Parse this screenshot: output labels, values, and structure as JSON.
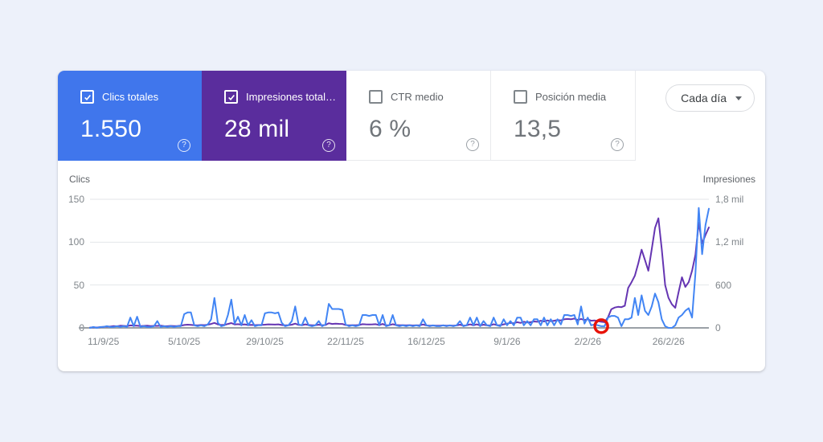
{
  "page": {
    "background": "#edf1fa"
  },
  "metrics": {
    "tiles": [
      {
        "id": "clicks",
        "label": "Clics totales",
        "value": "1.550",
        "checked": true,
        "color": "#4076ec"
      },
      {
        "id": "impressions",
        "label": "Impresiones total…",
        "value": "28 mil",
        "checked": true,
        "color": "#5a2d9d"
      },
      {
        "id": "ctr",
        "label": "CTR medio",
        "value": "6 %",
        "checked": false,
        "color": "#ffffff"
      },
      {
        "id": "position",
        "label": "Posición media",
        "value": "13,5",
        "checked": false,
        "color": "#ffffff"
      }
    ],
    "help_icon": "question-mark-circle"
  },
  "interval_selector": {
    "label": "Cada día",
    "icon": "caret-down"
  },
  "chart_data": {
    "type": "line",
    "title": "",
    "grid": true,
    "grid_color": "#e3e6ea",
    "baseline_color": "#9aa0a6",
    "left_axis": {
      "title": "Clics",
      "max": 150,
      "ticks": [
        0,
        50,
        100,
        150
      ],
      "tick_labels": [
        "0",
        "50",
        "100",
        "150"
      ]
    },
    "right_axis": {
      "title": "Impresiones",
      "max": 1800,
      "ticks": [
        0,
        600,
        1200,
        1800
      ],
      "tick_labels": [
        "0",
        "600",
        "1,2 mil",
        "1,8 mil"
      ]
    },
    "x_axis": {
      "total_days": 185,
      "tick_day_indices": [
        4,
        28,
        52,
        76,
        100,
        124,
        148,
        172
      ],
      "tick_labels": [
        "11/9/25",
        "5/10/25",
        "29/10/25",
        "22/11/25",
        "16/12/25",
        "9/1/26",
        "2/2/26",
        "26/2/26"
      ]
    },
    "series": [
      {
        "name": "Impresiones",
        "axis": "right",
        "color": "#6535b2",
        "values": [
          5,
          8,
          6,
          10,
          15,
          20,
          18,
          25,
          22,
          30,
          28,
          24,
          35,
          30,
          32,
          26,
          28,
          30,
          25,
          28,
          28,
          30,
          26,
          24,
          28,
          25,
          27,
          30,
          40,
          45,
          42,
          38,
          35,
          40,
          38,
          45,
          55,
          70,
          50,
          40,
          42,
          55,
          68,
          48,
          52,
          45,
          50,
          40,
          42,
          38,
          40,
          42,
          45,
          50,
          48,
          46,
          50,
          40,
          35,
          38,
          45,
          60,
          42,
          38,
          50,
          40,
          36,
          38,
          45,
          36,
          40,
          65,
          55,
          58,
          56,
          55,
          40,
          35,
          38,
          36,
          40,
          52,
          50,
          48,
          50,
          52,
          38,
          55,
          35,
          38,
          52,
          40,
          36,
          38,
          35,
          38,
          34,
          36,
          35,
          48,
          35,
          32,
          34,
          30,
          32,
          35,
          30,
          34,
          32,
          35,
          45,
          32,
          36,
          50,
          36,
          50,
          34,
          45,
          36,
          34,
          52,
          38,
          36,
          50,
          60,
          70,
          65,
          80,
          70,
          85,
          75,
          80,
          90,
          85,
          100,
          90,
          105,
          95,
          100,
          110,
          105,
          120,
          125,
          120,
          130,
          110,
          125,
          110,
          120,
          100,
          105,
          95,
          85,
          80,
          150,
          260,
          285,
          295,
          290,
          310,
          560,
          640,
          730,
          900,
          1095,
          950,
          800,
          1100,
          1400,
          1534,
          1100,
          600,
          420,
          330,
          281,
          500,
          709,
          574,
          640,
          800,
          1024,
          1474,
          1181,
          1300,
          1406
        ]
      },
      {
        "name": "Clics",
        "axis": "left",
        "color": "#4285f4",
        "values": [
          0,
          1,
          0,
          1,
          1,
          2,
          1,
          1,
          2,
          1,
          2,
          1,
          12,
          2,
          13,
          1,
          2,
          1,
          1,
          2,
          8,
          1,
          2,
          1,
          2,
          1,
          2,
          2,
          16,
          18,
          18,
          3,
          2,
          3,
          2,
          4,
          10,
          35,
          6,
          2,
          3,
          15,
          33,
          5,
          13,
          3,
          15,
          3,
          9,
          2,
          3,
          3,
          17,
          18,
          18,
          17,
          18,
          6,
          2,
          3,
          8,
          25,
          4,
          3,
          12,
          3,
          2,
          3,
          8,
          2,
          4,
          28,
          22,
          22,
          22,
          21,
          4,
          2,
          3,
          2,
          3,
          15,
          15,
          14,
          15,
          15,
          3,
          15,
          2,
          3,
          15,
          3,
          2,
          3,
          2,
          3,
          2,
          3,
          2,
          10,
          3,
          2,
          3,
          2,
          2,
          3,
          2,
          3,
          2,
          3,
          8,
          2,
          3,
          12,
          3,
          12,
          2,
          8,
          3,
          2,
          12,
          3,
          2,
          10,
          3,
          8,
          3,
          12,
          12,
          3,
          8,
          3,
          10,
          10,
          3,
          12,
          3,
          10,
          3,
          10,
          4,
          15,
          15,
          14,
          15,
          4,
          25,
          5,
          12,
          3,
          4,
          3,
          2,
          2,
          12,
          14,
          14,
          12,
          2,
          10,
          10,
          12,
          35,
          15,
          38,
          20,
          15,
          25,
          40,
          30,
          10,
          2,
          0,
          0,
          3,
          12,
          15,
          20,
          23,
          12,
          64,
          140,
          86,
          120,
          139
        ]
      }
    ],
    "annotation": {
      "type": "circle",
      "series": "Clics",
      "day_index": 152,
      "color": "#e81309"
    }
  }
}
